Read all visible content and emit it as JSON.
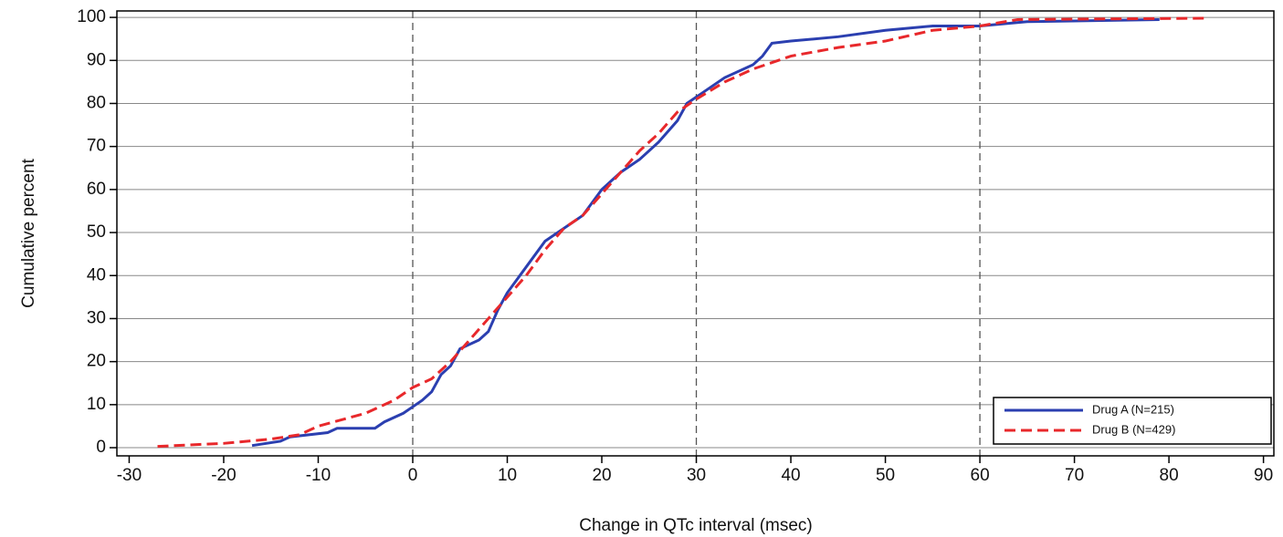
{
  "chart_data": {
    "type": "line",
    "x_label": "Change in QTc interval (msec)",
    "y_label": "Cumulative percent",
    "xlim": [
      -31.3,
      91.1
    ],
    "ylim": [
      -1.9,
      101.5
    ],
    "xticks": [
      -30,
      -20,
      -10,
      0,
      10,
      20,
      30,
      40,
      50,
      60,
      70,
      80,
      90
    ],
    "yticks": [
      0,
      10,
      20,
      30,
      40,
      50,
      60,
      70,
      80,
      90,
      100
    ],
    "grid": true,
    "vlines": [
      0,
      30,
      60
    ],
    "legend": "lower right",
    "series": [
      {
        "name": "Drug A (N=215)",
        "color": "#2b3fb0",
        "dash": "solid",
        "x": [
          -17,
          -14,
          -13,
          -9,
          -8,
          -4,
          -3,
          -1,
          0,
          1,
          2,
          3,
          4,
          5,
          7,
          8,
          9,
          10,
          12,
          14,
          16,
          18,
          20,
          22,
          24,
          26,
          28,
          29,
          31,
          33,
          36,
          37,
          38,
          40,
          45,
          50,
          55,
          60,
          65,
          79
        ],
        "values": [
          0.5,
          1.5,
          2.5,
          3.5,
          4.5,
          4.5,
          6,
          8,
          9.5,
          11,
          13,
          17,
          19,
          23,
          25,
          27,
          32,
          36,
          42,
          48,
          51,
          54,
          60,
          64,
          67,
          71,
          76,
          80,
          83,
          86,
          89,
          91,
          94,
          94.5,
          95.5,
          97,
          98,
          98,
          99,
          99.5
        ]
      },
      {
        "name": "Drug B (N=429)",
        "color": "#e8282b",
        "dash": "dashed",
        "x": [
          -27,
          -20,
          -15,
          -12,
          -10,
          -5,
          -2,
          0,
          2,
          4,
          6,
          8,
          10,
          12,
          14,
          16,
          18,
          20,
          22,
          24,
          26,
          28,
          30,
          33,
          36,
          40,
          45,
          50,
          55,
          60,
          64,
          84
        ],
        "values": [
          0.3,
          1,
          2,
          3,
          5,
          8,
          11,
          14,
          16,
          20,
          25,
          30,
          35,
          40,
          46,
          51,
          54,
          59,
          64,
          69,
          73,
          78,
          81,
          85,
          88,
          91,
          93,
          94.5,
          97,
          98,
          99.5,
          99.8
        ]
      }
    ]
  }
}
